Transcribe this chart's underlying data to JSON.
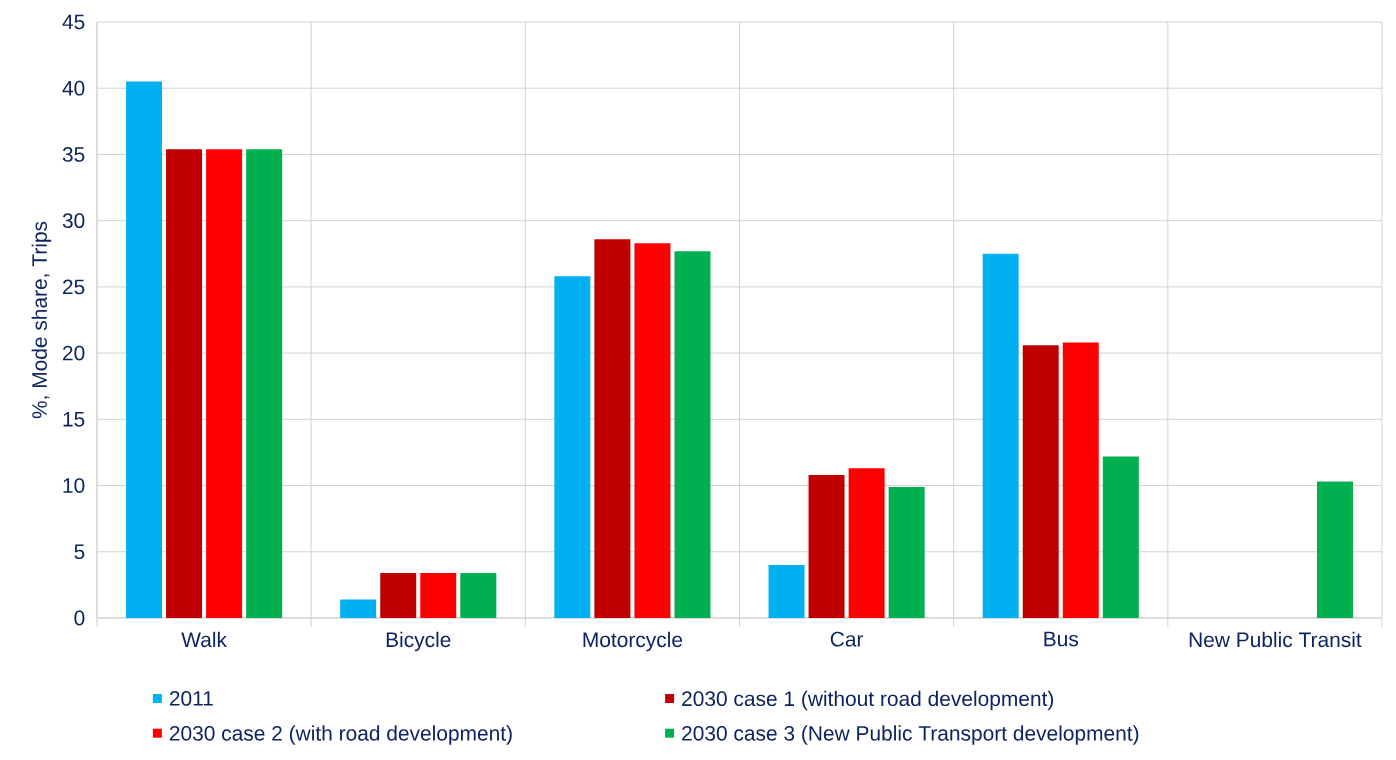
{
  "chart_data": {
    "type": "bar",
    "ylabel": "%, Mode share, Trips",
    "categories": [
      "Walk",
      "Bicycle",
      "Motorcycle",
      "Car",
      "Bus",
      "New Public Transit"
    ],
    "series": [
      {
        "name": "2011",
        "color": "#00b0f0",
        "values": [
          40.5,
          1.4,
          25.8,
          4.0,
          27.5,
          null
        ]
      },
      {
        "name": "2030 case 1 (without road development)",
        "color": "#c00000",
        "values": [
          35.4,
          3.4,
          28.6,
          10.8,
          20.6,
          null
        ]
      },
      {
        "name": "2030 case 2 (with road development)",
        "color": "#ff0000",
        "values": [
          35.4,
          3.4,
          28.3,
          11.3,
          20.8,
          null
        ]
      },
      {
        "name": "2030 case 3 (New Public Transport development)",
        "color": "#00b050",
        "values": [
          35.4,
          3.4,
          27.7,
          9.9,
          12.2,
          10.3
        ]
      }
    ],
    "ylim": [
      0,
      45
    ],
    "yticks": [
      0,
      5,
      10,
      15,
      20,
      25,
      30,
      35,
      40,
      45
    ],
    "grid": true,
    "legend": "bottom"
  }
}
